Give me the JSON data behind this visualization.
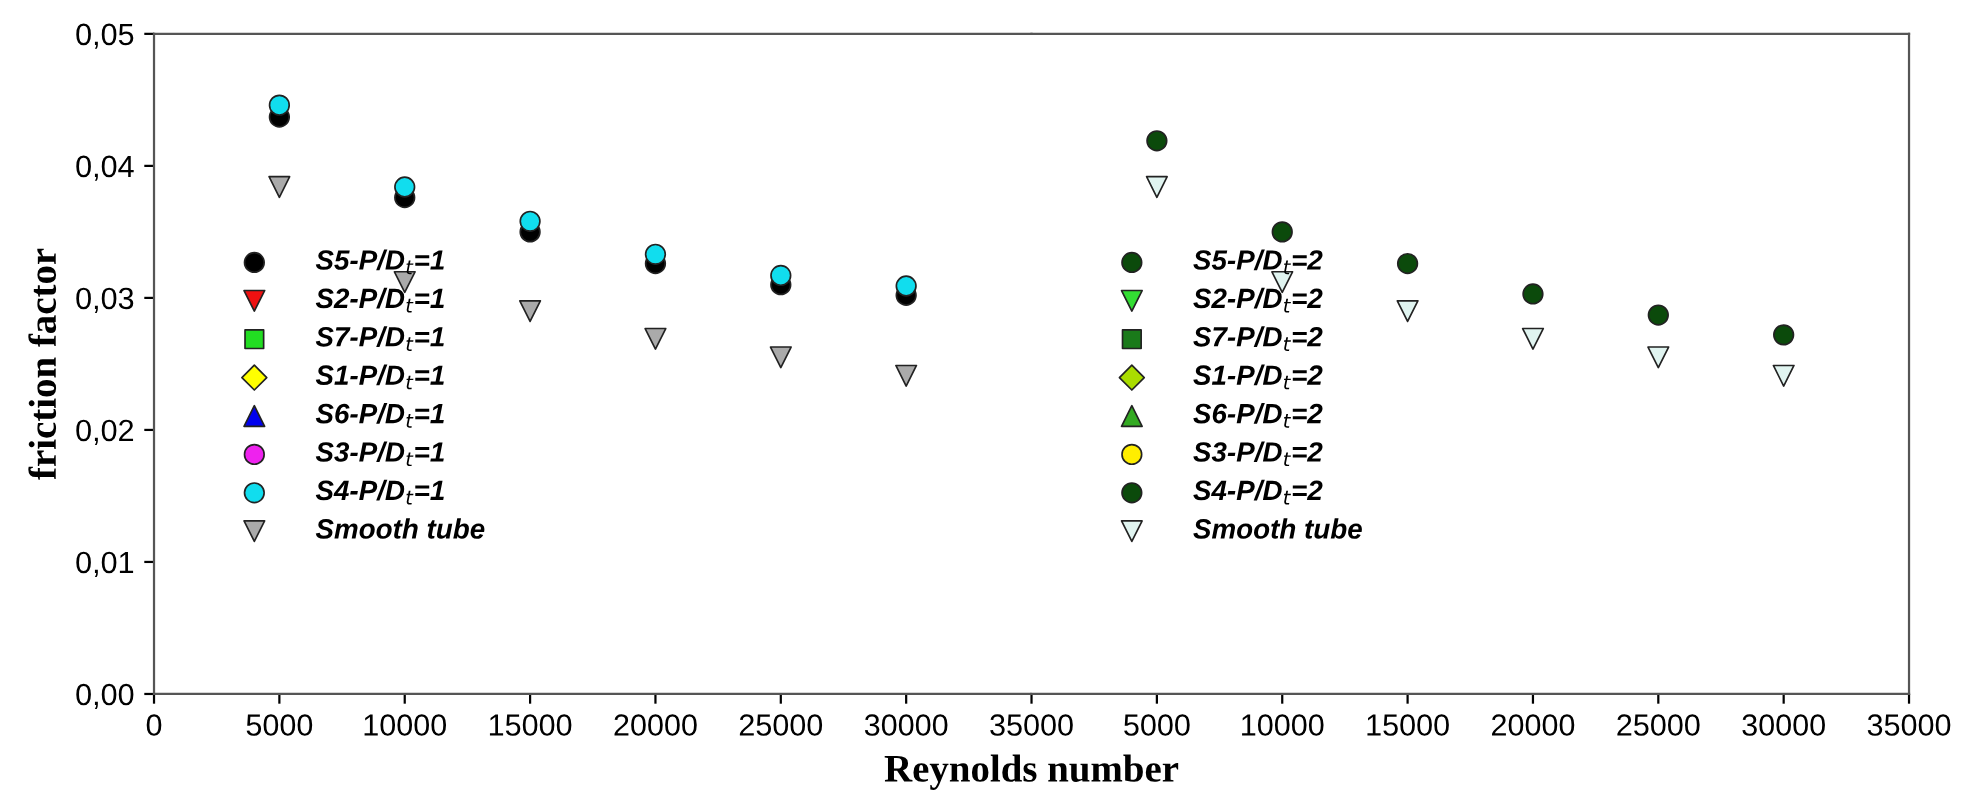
{
  "chart_data": [
    {
      "type": "scatter",
      "xlabel": "Reynolds number",
      "ylabel": "friction factor",
      "x": [
        5000,
        10000,
        15000,
        20000,
        25000,
        30000
      ],
      "xlim": [
        0,
        35000
      ],
      "xticks": [
        0,
        5000,
        10000,
        15000,
        20000,
        25000,
        30000,
        35000
      ],
      "ylim": [
        0,
        0.05
      ],
      "yticks": [
        {
          "value": 0,
          "label": "0,00"
        },
        {
          "value": 0.01,
          "label": "0,01"
        },
        {
          "value": 0.02,
          "label": "0,02"
        },
        {
          "value": 0.03,
          "label": "0,03"
        },
        {
          "value": 0.04,
          "label": "0,04"
        },
        {
          "value": 0.05,
          "label": "0,05"
        }
      ],
      "grid": false,
      "legend": "left",
      "series": [
        {
          "name": "S5-P/D$_{t}$=1",
          "color": "#000000",
          "marker": "circle",
          "values": [
            0.0437,
            0.0376,
            0.035,
            0.0326,
            0.031,
            0.0302
          ]
        },
        {
          "name": "S2-P/D$_{t}$=1",
          "color": "#ee1111",
          "marker": "triangle_down",
          "values": [
            null,
            null,
            null,
            null,
            null,
            null
          ]
        },
        {
          "name": "S7-P/D$_{t}$=1",
          "color": "#22dd22",
          "marker": "square",
          "values": [
            null,
            null,
            null,
            null,
            null,
            null
          ]
        },
        {
          "name": "S1-P/D$_{t}$=1",
          "color": "#ffff00",
          "marker": "diamond",
          "values": [
            null,
            null,
            null,
            null,
            null,
            null
          ]
        },
        {
          "name": "S6-P/D$_{t}$=1",
          "color": "#0000ee",
          "marker": "triangle",
          "values": [
            null,
            null,
            null,
            null,
            null,
            null
          ]
        },
        {
          "name": "S3-P/D$_{t}$=1",
          "color": "#ee22ee",
          "marker": "circle",
          "values": [
            null,
            null,
            null,
            null,
            null,
            null
          ]
        },
        {
          "name": "S4-P/D$_{t}$=1",
          "color": "#11ddee",
          "marker": "circle",
          "values": [
            0.0446,
            0.0384,
            0.0358,
            0.0333,
            0.0317,
            0.0309
          ]
        },
        {
          "name": "Smooth tube",
          "color": "#aaaaaa",
          "marker": "triangle_down",
          "values": [
            0.0384,
            0.0312,
            0.029,
            0.0269,
            0.0255,
            0.0241
          ]
        }
      ]
    },
    {
      "type": "scatter",
      "x": [
        5000,
        10000,
        15000,
        20000,
        25000,
        30000
      ],
      "xlim": [
        0,
        35000
      ],
      "xticks": [
        5000,
        10000,
        15000,
        20000,
        25000,
        30000,
        35000
      ],
      "ylim": [
        0,
        0.05
      ],
      "tick_labels": "x",
      "grid": false,
      "legend": "left",
      "series": [
        {
          "name": "S5-P/D$_{t}$=2",
          "color": "#0b4a0b",
          "marker": "circle",
          "values": [
            null,
            null,
            null,
            null,
            null,
            null
          ]
        },
        {
          "name": "S2-P/D$_{t}$=2",
          "color": "#33dd33",
          "marker": "triangle_down",
          "values": [
            null,
            null,
            null,
            null,
            null,
            null
          ]
        },
        {
          "name": "S7-P/D$_{t}$=2",
          "color": "#1a7a1a",
          "marker": "square",
          "values": [
            null,
            null,
            null,
            null,
            null,
            null
          ]
        },
        {
          "name": "S1-P/D$_{t}$=2",
          "color": "#aadd00",
          "marker": "diamond",
          "values": [
            null,
            null,
            null,
            null,
            null,
            null
          ]
        },
        {
          "name": "S6-P/D$_{t}$=2",
          "color": "#33aa22",
          "marker": "triangle",
          "values": [
            null,
            null,
            null,
            null,
            null,
            null
          ]
        },
        {
          "name": "S3-P/D$_{t}$=2",
          "color": "#ffee00",
          "marker": "circle",
          "values": [
            null,
            null,
            null,
            null,
            null,
            null
          ]
        },
        {
          "name": "S4-P/D$_{t}$=2",
          "color": "#0b4a0b",
          "marker": "circle",
          "values": [
            0.0419,
            0.035,
            0.0326,
            0.0303,
            0.0287,
            0.0272
          ]
        },
        {
          "name": "Smooth tube",
          "color": "#e0f4f0",
          "marker": "triangle_down",
          "values": [
            0.0384,
            0.0312,
            0.029,
            0.0269,
            0.0255,
            0.0241
          ]
        }
      ]
    }
  ]
}
